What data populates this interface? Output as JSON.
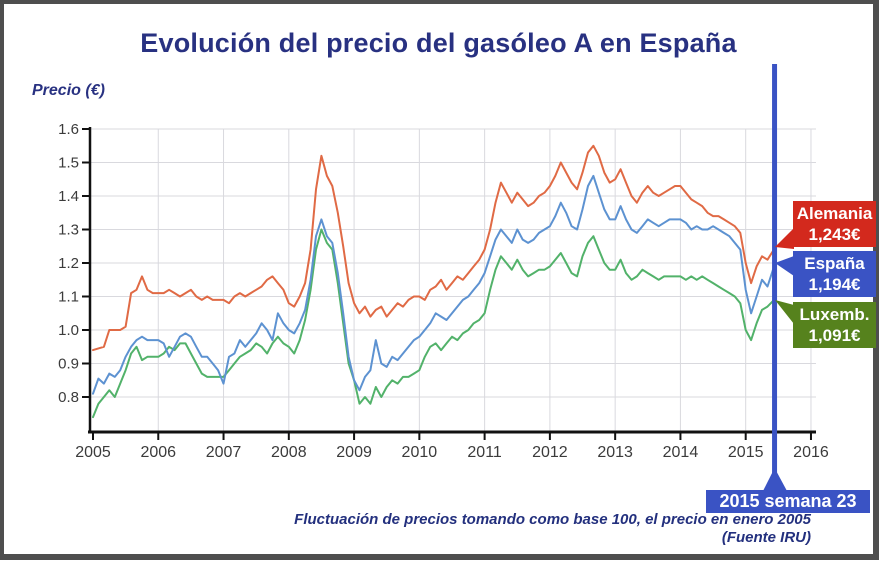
{
  "title": "Evolución del precio del gasóleo A en España",
  "y_axis_label": "Precio (€)",
  "footnote": {
    "line1": "Fluctuación de precios tomando como base 100, el precio en enero 2005",
    "line2": "(Fuente IRU)"
  },
  "marker": {
    "label": "2015 semana 23",
    "color": "#3a53c4"
  },
  "tags": [
    {
      "name": "Alemania",
      "price": "1,243€",
      "color": "#d3291d"
    },
    {
      "name": "España",
      "price": "1,194€",
      "color": "#3a53c4"
    },
    {
      "name": "Luxemb.",
      "price": "1,091€",
      "color": "#56821d"
    }
  ],
  "colors": {
    "title_navy": "#283181",
    "axis": "#111111",
    "grid": "#d9d9de",
    "tick_text": "#3b3b3b"
  },
  "chart_data": {
    "type": "line",
    "title": "Evolución del precio del gasóleo A en España",
    "ylabel": "Precio (€)",
    "xlabel": "",
    "grid": true,
    "legend_position": "right-labels",
    "xlim": [
      2005,
      2016.1
    ],
    "ylim": [
      0.695,
      1.6
    ],
    "x_ticks": [
      2005,
      2006,
      2007,
      2008,
      2009,
      2010,
      2011,
      2012,
      2013,
      2014,
      2015,
      2016
    ],
    "x_tick_labels": [
      "2005",
      "2006",
      "2007",
      "2008",
      "2009",
      "2010",
      "2011",
      "2012",
      "2013",
      "2014",
      "2015",
      "2016"
    ],
    "y_ticks": [
      1.6,
      1.5,
      1.4,
      1.3,
      1.2,
      1.1,
      1.0,
      0.9,
      0.8
    ],
    "y_tick_labels": [
      "1.6",
      "1.5",
      "1.4",
      "1.3",
      "1.2",
      "1.1",
      "1.0",
      "0.9",
      "0.8"
    ],
    "x_start": 2005,
    "x_step_years": 0.08333,
    "x_end": 2015.442,
    "marker_x": 2015.442,
    "marker_label": "2015 semana 23",
    "series": [
      {
        "key": "alemania",
        "name": "Alemania",
        "color": "#e06a45",
        "final_value": 1.243,
        "values": [
          0.94,
          0.945,
          0.95,
          1.0,
          1.0,
          1.0,
          1.01,
          1.11,
          1.12,
          1.16,
          1.12,
          1.11,
          1.11,
          1.11,
          1.12,
          1.11,
          1.1,
          1.11,
          1.12,
          1.1,
          1.09,
          1.1,
          1.09,
          1.09,
          1.09,
          1.08,
          1.1,
          1.11,
          1.1,
          1.11,
          1.12,
          1.13,
          1.15,
          1.16,
          1.14,
          1.12,
          1.08,
          1.07,
          1.1,
          1.14,
          1.24,
          1.42,
          1.52,
          1.46,
          1.43,
          1.35,
          1.25,
          1.14,
          1.08,
          1.05,
          1.07,
          1.04,
          1.06,
          1.07,
          1.04,
          1.06,
          1.08,
          1.07,
          1.09,
          1.1,
          1.1,
          1.09,
          1.12,
          1.13,
          1.15,
          1.12,
          1.14,
          1.16,
          1.15,
          1.17,
          1.19,
          1.21,
          1.24,
          1.3,
          1.38,
          1.44,
          1.41,
          1.38,
          1.41,
          1.39,
          1.37,
          1.38,
          1.4,
          1.41,
          1.43,
          1.46,
          1.5,
          1.47,
          1.44,
          1.42,
          1.47,
          1.53,
          1.55,
          1.52,
          1.47,
          1.44,
          1.45,
          1.48,
          1.44,
          1.4,
          1.38,
          1.41,
          1.43,
          1.41,
          1.4,
          1.41,
          1.42,
          1.43,
          1.43,
          1.41,
          1.39,
          1.38,
          1.37,
          1.35,
          1.34,
          1.34,
          1.33,
          1.32,
          1.31,
          1.29,
          1.2,
          1.14,
          1.19,
          1.22,
          1.21,
          1.243
        ]
      },
      {
        "key": "espana",
        "name": "España",
        "color": "#5d92d1",
        "final_value": 1.194,
        "values": [
          0.81,
          0.855,
          0.84,
          0.87,
          0.86,
          0.88,
          0.92,
          0.95,
          0.97,
          0.98,
          0.97,
          0.97,
          0.97,
          0.96,
          0.92,
          0.95,
          0.98,
          0.99,
          0.98,
          0.95,
          0.92,
          0.92,
          0.9,
          0.88,
          0.84,
          0.92,
          0.93,
          0.97,
          0.95,
          0.97,
          0.99,
          1.02,
          1.0,
          0.97,
          1.05,
          1.02,
          1.0,
          0.99,
          1.02,
          1.06,
          1.15,
          1.28,
          1.33,
          1.28,
          1.26,
          1.17,
          1.05,
          0.92,
          0.85,
          0.82,
          0.86,
          0.88,
          0.97,
          0.9,
          0.89,
          0.92,
          0.91,
          0.93,
          0.95,
          0.97,
          0.98,
          1.0,
          1.02,
          1.05,
          1.04,
          1.03,
          1.05,
          1.07,
          1.09,
          1.1,
          1.12,
          1.14,
          1.17,
          1.22,
          1.27,
          1.3,
          1.28,
          1.26,
          1.3,
          1.27,
          1.26,
          1.27,
          1.29,
          1.3,
          1.31,
          1.34,
          1.38,
          1.35,
          1.31,
          1.3,
          1.36,
          1.43,
          1.46,
          1.41,
          1.36,
          1.33,
          1.33,
          1.37,
          1.33,
          1.3,
          1.29,
          1.31,
          1.33,
          1.32,
          1.31,
          1.32,
          1.33,
          1.33,
          1.33,
          1.32,
          1.3,
          1.31,
          1.3,
          1.3,
          1.31,
          1.3,
          1.29,
          1.28,
          1.26,
          1.24,
          1.12,
          1.05,
          1.1,
          1.15,
          1.13,
          1.194
        ]
      },
      {
        "key": "luxemb",
        "name": "Luxemb.",
        "color": "#52b26a",
        "final_value": 1.091,
        "values": [
          0.74,
          0.78,
          0.8,
          0.82,
          0.8,
          0.84,
          0.88,
          0.93,
          0.95,
          0.91,
          0.92,
          0.92,
          0.92,
          0.93,
          0.95,
          0.94,
          0.96,
          0.96,
          0.93,
          0.9,
          0.87,
          0.86,
          0.86,
          0.86,
          0.86,
          0.88,
          0.9,
          0.92,
          0.93,
          0.94,
          0.96,
          0.95,
          0.93,
          0.96,
          0.98,
          0.96,
          0.95,
          0.93,
          0.97,
          1.03,
          1.12,
          1.24,
          1.3,
          1.26,
          1.24,
          1.14,
          1.02,
          0.9,
          0.85,
          0.78,
          0.8,
          0.78,
          0.83,
          0.8,
          0.83,
          0.85,
          0.84,
          0.86,
          0.86,
          0.87,
          0.88,
          0.92,
          0.95,
          0.96,
          0.94,
          0.96,
          0.98,
          0.97,
          0.99,
          1.0,
          1.02,
          1.03,
          1.05,
          1.12,
          1.18,
          1.22,
          1.2,
          1.18,
          1.21,
          1.18,
          1.16,
          1.17,
          1.18,
          1.18,
          1.19,
          1.21,
          1.23,
          1.2,
          1.17,
          1.16,
          1.22,
          1.26,
          1.28,
          1.24,
          1.2,
          1.18,
          1.18,
          1.21,
          1.17,
          1.15,
          1.16,
          1.18,
          1.17,
          1.16,
          1.15,
          1.16,
          1.16,
          1.16,
          1.16,
          1.15,
          1.16,
          1.15,
          1.16,
          1.15,
          1.14,
          1.13,
          1.12,
          1.11,
          1.1,
          1.08,
          1.0,
          0.97,
          1.02,
          1.06,
          1.07,
          1.091
        ]
      }
    ]
  }
}
